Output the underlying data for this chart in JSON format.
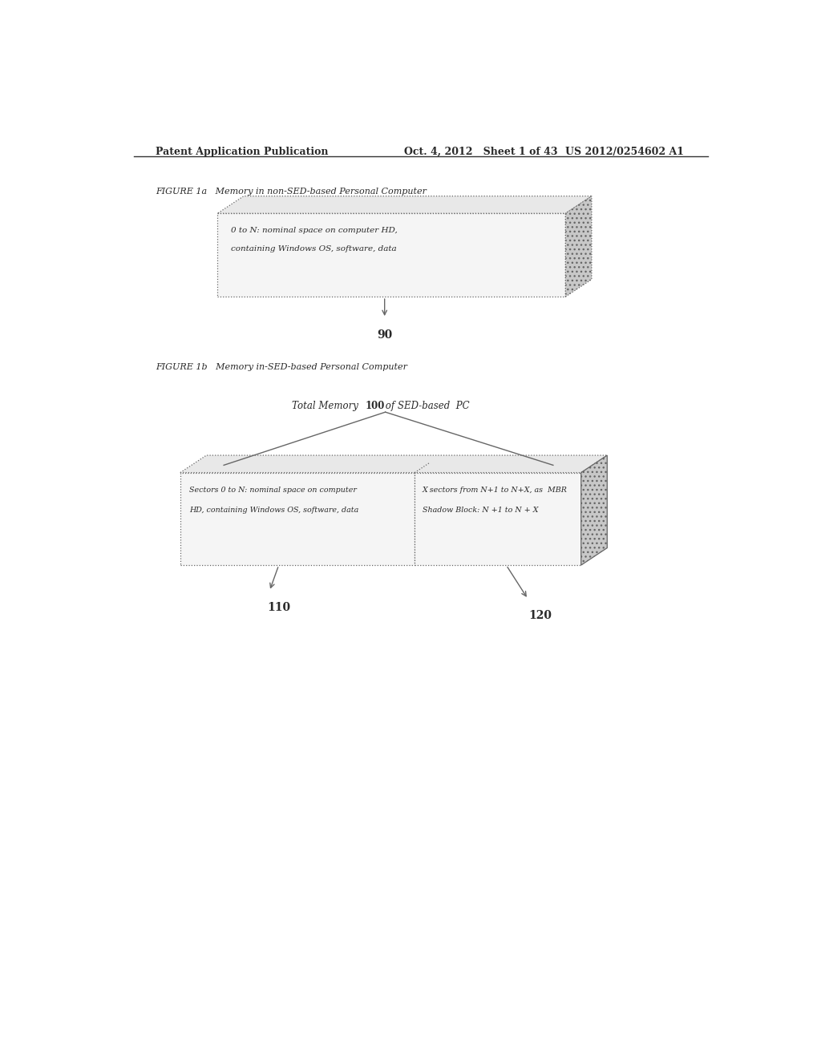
{
  "background_color": "#ffffff",
  "header_left": "Patent Application Publication",
  "header_center": "Oct. 4, 2012   Sheet 1 of 43",
  "header_right": "US 2012/0254602 A1",
  "fig1a_label": "FIGURE 1a   Memory in non-SED-based Personal Computer",
  "fig1b_label": "FIGURE 1b   Memory in-SED-based Personal Computer",
  "box1_text_line1": "0 to N: nominal space on computer HD,",
  "box1_text_line2": "containing Windows OS, software, data",
  "box1_label": "90",
  "box2a_text_line1": "Sectors 0 to N: nominal space on computer",
  "box2a_text_line2": "HD, containing Windows OS, software, data",
  "box2b_text_line1": "X sectors from N+1 to N+X, as  MBR",
  "box2b_text_line2": "Shadow Block: N +1 to N + X",
  "box2a_label": "110",
  "box2b_label": "120",
  "total_memory_italic": "Total Memory ",
  "total_memory_bold": "100",
  "total_memory_italic2": " of SED-based  PC",
  "text_color": "#2a2a2a",
  "box_edge_color": "#666666",
  "front_fill": "#f5f5f5",
  "top_fill": "#e8e8e8",
  "right_fill": "#c8c8c8"
}
